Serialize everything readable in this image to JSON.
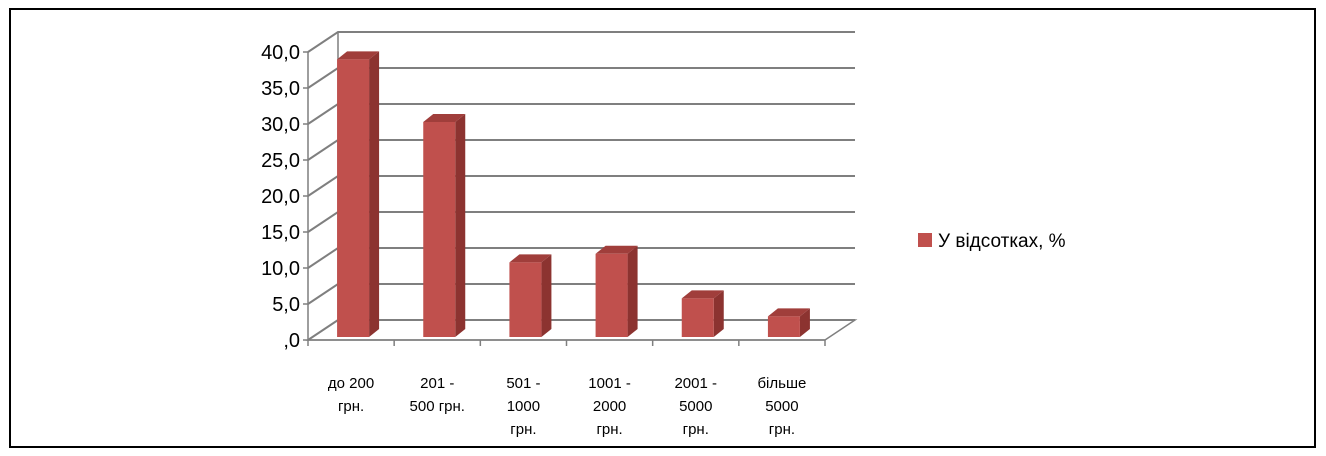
{
  "chart_data": {
    "type": "bar",
    "style": "3d-column",
    "categories": [
      [
        "до 200",
        "грн."
      ],
      [
        "201 -",
        "500 грн."
      ],
      [
        "501 -",
        "1000",
        "грн."
      ],
      [
        "1001 -",
        "2000",
        "грн."
      ],
      [
        "2001 -",
        "5000",
        "грн."
      ],
      [
        "більше",
        "5000",
        "грн."
      ]
    ],
    "series": [
      {
        "name": "У відсотках, %",
        "values": [
          38.7,
          30.0,
          10.5,
          11.7,
          5.5,
          3.0
        ]
      }
    ],
    "yticks": [
      ",0",
      "5,0",
      "10,0",
      "15,0",
      "20,0",
      "25,0",
      "30,0",
      "35,0",
      "40,0"
    ],
    "ylim": [
      0,
      40
    ],
    "ystep": 5,
    "title": "",
    "xlabel": "",
    "ylabel": "",
    "grid": true,
    "legend_position": "right",
    "colors": {
      "bar_front": "#c0504d",
      "bar_side": "#8c3330",
      "bar_top": "#a03e3b",
      "grid": "#7f7f7f",
      "legend_swatch": "#c0504d"
    }
  }
}
